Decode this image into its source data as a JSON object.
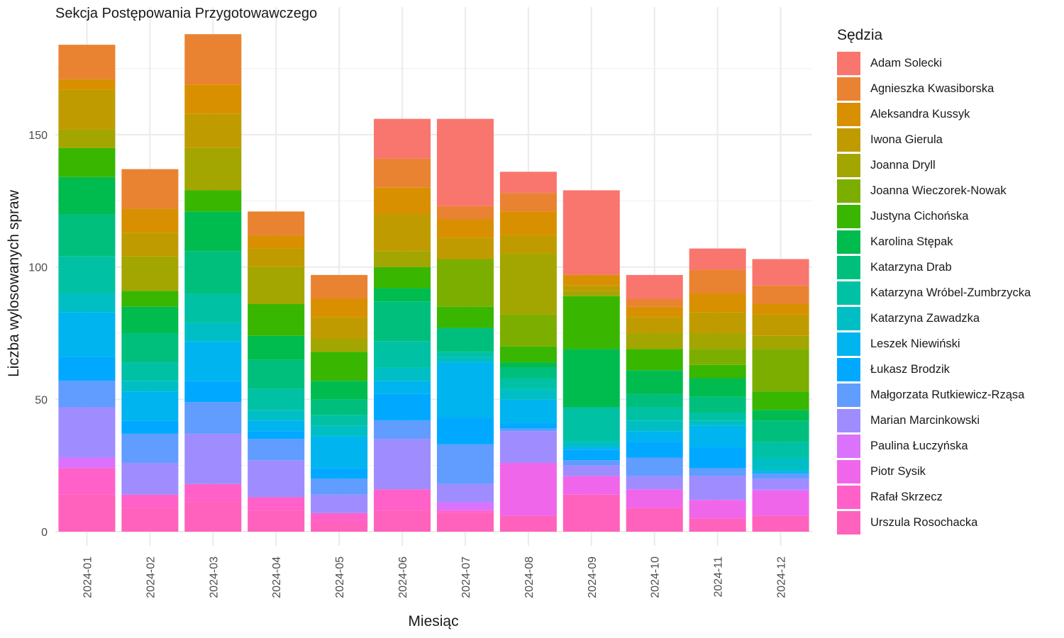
{
  "chart_data": {
    "type": "bar",
    "stacked": true,
    "title": "Sekcja Postępowania Przygotowawczego",
    "xlabel": "Miesiąc",
    "ylabel": "Liczba wylosowanych spraw",
    "ylim": [
      0,
      190
    ],
    "yticks": [
      0,
      50,
      100,
      150
    ],
    "grid": true,
    "legend_title": "Sędzia",
    "legend_position": "right",
    "categories": [
      "2024-01",
      "2024-02",
      "2024-03",
      "2024-04",
      "2024-05",
      "2024-06",
      "2024-07",
      "2024-08",
      "2024-09",
      "2024-10",
      "2024-11",
      "2024-12"
    ],
    "series": [
      {
        "name": "Adam Solecki",
        "color": "#F8766D",
        "values": [
          0,
          0,
          0,
          0,
          0,
          15,
          33,
          8,
          32,
          9,
          8,
          10
        ]
      },
      {
        "name": "Agnieszka Kwasiborska",
        "color": "#EA8331",
        "values": [
          13,
          15,
          19,
          9,
          9,
          11,
          5,
          7,
          0,
          3,
          9,
          7
        ]
      },
      {
        "name": "Aleksandra Kussyk",
        "color": "#D89000",
        "values": [
          4,
          9,
          11,
          5,
          7,
          10,
          7,
          9,
          4,
          4,
          7,
          4
        ]
      },
      {
        "name": "Iwona Gierula",
        "color": "#C09B00",
        "values": [
          15,
          9,
          13,
          7,
          8,
          14,
          8,
          7,
          2,
          6,
          8,
          8
        ]
      },
      {
        "name": "Joanna Dryll",
        "color": "#A3A500",
        "values": [
          7,
          13,
          16,
          14,
          5,
          6,
          0,
          23,
          2,
          6,
          6,
          5
        ]
      },
      {
        "name": "Joanna Wieczorek-Nowak",
        "color": "#7CAE00",
        "values": [
          0,
          0,
          0,
          0,
          0,
          0,
          18,
          12,
          0,
          0,
          6,
          16
        ]
      },
      {
        "name": "Justyna Cichońska",
        "color": "#39B600",
        "values": [
          11,
          6,
          8,
          12,
          11,
          8,
          8,
          6,
          20,
          8,
          5,
          7
        ]
      },
      {
        "name": "Karolina Stępak",
        "color": "#00BB4E",
        "values": [
          14,
          10,
          15,
          9,
          7,
          5,
          0,
          2,
          22,
          9,
          7,
          4
        ]
      },
      {
        "name": "Katarzyna Drab",
        "color": "#00BF7D",
        "values": [
          16,
          11,
          16,
          11,
          6,
          15,
          9,
          4,
          0,
          5,
          6,
          8
        ]
      },
      {
        "name": "Katarzyna Wróbel-Zumbrzycka",
        "color": "#00C1A3",
        "values": [
          14,
          7,
          11,
          8,
          4,
          10,
          2,
          4,
          13,
          5,
          3,
          6
        ]
      },
      {
        "name": "Katarzyna Zawadzka",
        "color": "#00BFC4",
        "values": [
          7,
          4,
          7,
          4,
          4,
          5,
          2,
          4,
          2,
          4,
          2,
          5
        ]
      },
      {
        "name": "Leszek Niewiński",
        "color": "#00B4F0",
        "values": [
          17,
          11,
          15,
          4,
          12,
          5,
          21,
          9,
          1,
          4,
          8,
          1
        ]
      },
      {
        "name": "Łukasz Brodzik",
        "color": "#00A9FF",
        "values": [
          9,
          5,
          8,
          3,
          4,
          10,
          10,
          2,
          4,
          6,
          8,
          0
        ]
      },
      {
        "name": "Małgorzata Rutkiewicz-Rząsa",
        "color": "#619CFF",
        "values": [
          10,
          11,
          12,
          8,
          6,
          7,
          15,
          1,
          2,
          7,
          3,
          2
        ]
      },
      {
        "name": "Marian Marcinkowski",
        "color": "#9F8CFF",
        "values": [
          19,
          12,
          19,
          14,
          7,
          19,
          7,
          12,
          4,
          5,
          9,
          4
        ]
      },
      {
        "name": "Paulina Łuczyńska",
        "color": "#DB72FB",
        "values": [
          4,
          0,
          0,
          0,
          0,
          0,
          3,
          0,
          0,
          0,
          0,
          1
        ]
      },
      {
        "name": "Piotr Sysik",
        "color": "#F066EA",
        "values": [
          0,
          0,
          0,
          0,
          0,
          0,
          0,
          20,
          7,
          7,
          7,
          9
        ]
      },
      {
        "name": "Rafał Skrzecz",
        "color": "#FF61C9",
        "values": [
          10,
          5,
          7,
          5,
          3,
          8,
          1,
          0,
          0,
          0,
          0,
          0
        ]
      },
      {
        "name": "Urszula Rosochacka",
        "color": "#FF62BC",
        "values": [
          14,
          9,
          11,
          8,
          4,
          8,
          7,
          6,
          14,
          9,
          5,
          6
        ]
      }
    ]
  }
}
